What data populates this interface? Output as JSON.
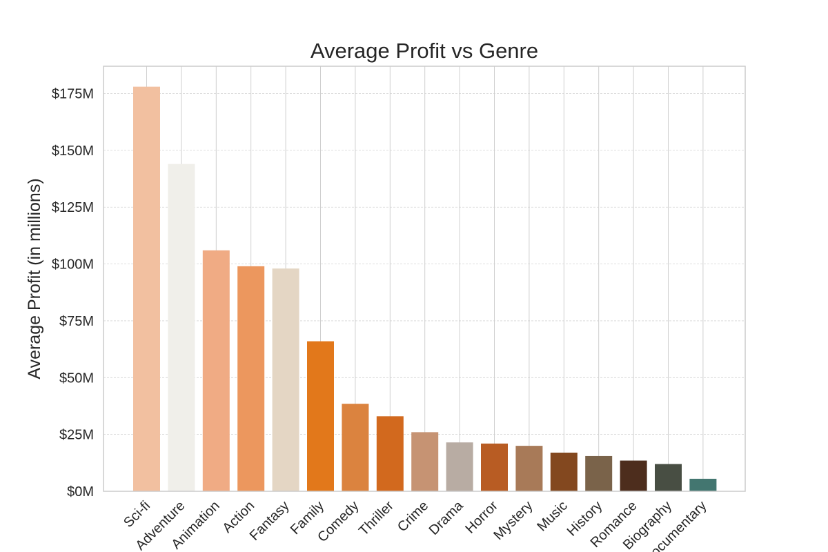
{
  "chart_data": {
    "type": "bar",
    "title": "Average Profit vs Genre",
    "xlabel": "",
    "ylabel": "Average Profit (in millions)",
    "categories": [
      "Sci-fi",
      "Adventure",
      "Animation",
      "Action",
      "Fantasy",
      "Family",
      "Comedy",
      "Thriller",
      "Crime",
      "Drama",
      "Horror",
      "Mystery",
      "Music",
      "History",
      "Romance",
      "Biography",
      "Documentary"
    ],
    "values": [
      178,
      144,
      106,
      99,
      98,
      66,
      38.5,
      33,
      26,
      21.5,
      21,
      20,
      17,
      15.5,
      13.5,
      12,
      5.5
    ],
    "colors": [
      "#f2c0a0",
      "#f0efea",
      "#f0ab84",
      "#ec975e",
      "#e4d6c4",
      "#e2781b",
      "#db833f",
      "#d2691e",
      "#c69373",
      "#b8aca3",
      "#b85c23",
      "#a87a58",
      "#83481f",
      "#7a634a",
      "#4d2d1d",
      "#484e43",
      "#437670"
    ],
    "ylim": [
      0,
      187
    ],
    "yticks": [
      0,
      25,
      50,
      75,
      100,
      125,
      150,
      175
    ],
    "ytick_labels": [
      "$0M",
      "$25M",
      "$50M",
      "$75M",
      "$100M",
      "$125M",
      "$150M",
      "$175M"
    ],
    "grid": true
  }
}
